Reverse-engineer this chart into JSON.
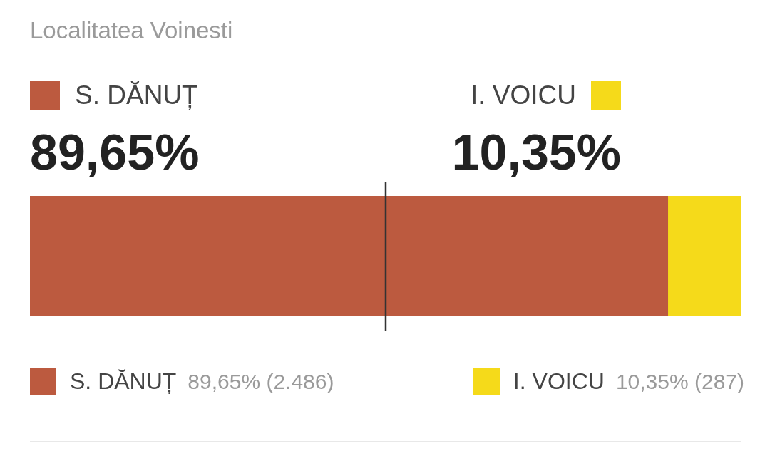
{
  "chart_data": {
    "type": "bar",
    "title": "Localitatea Voinesti",
    "orientation": "horizontal",
    "stacked": true,
    "categories": [
      null
    ],
    "series": [
      {
        "name": "S. DĂNUȚ",
        "color": "#bc5a3f",
        "values": [
          89.65
        ],
        "value_labels": [
          "89,65%"
        ]
      },
      {
        "name": "I. VOICU",
        "color": "#f5da1a",
        "values": [
          10.35
        ],
        "value_labels": [
          "10,35%"
        ]
      }
    ],
    "xlim": [
      0,
      100
    ],
    "tick_labels": false,
    "legend": "bottom",
    "ref_lines": [
      {
        "axis": "x",
        "value": 50,
        "color": "#333333"
      }
    ],
    "annotations": [
      "89,65% (2.486)",
      "10,35% (287)"
    ]
  }
}
